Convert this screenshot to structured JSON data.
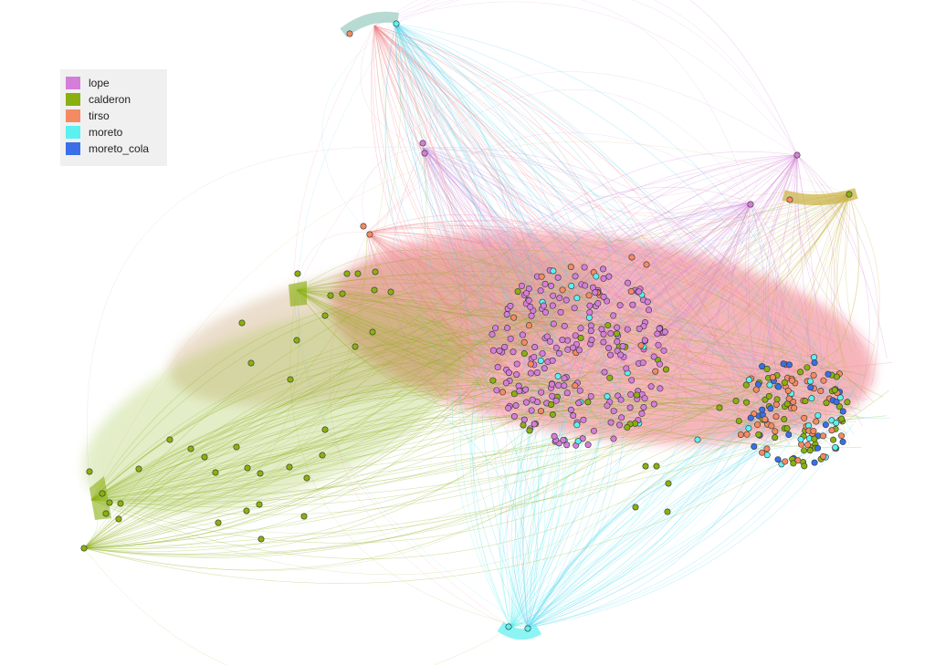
{
  "legend": {
    "items": [
      {
        "label": "lope",
        "color": "#d57ed9"
      },
      {
        "label": "calderon",
        "color": "#8ab010"
      },
      {
        "label": "tirso",
        "color": "#f58a62"
      },
      {
        "label": "moreto",
        "color": "#5cf0f0"
      },
      {
        "label": "moreto_cola",
        "color": "#3a6fe8"
      }
    ]
  },
  "colors": {
    "lope": "#d57ed9",
    "calderon": "#8ab010",
    "tirso": "#f58a62",
    "moreto": "#5cf0f0",
    "moreto_cola": "#3a6fe8",
    "edge_pink": "#f07a85",
    "edge_green": "#9cc23a",
    "edge_cyan": "#4fd3ee",
    "edge_lilac": "#c98fe0"
  }
}
